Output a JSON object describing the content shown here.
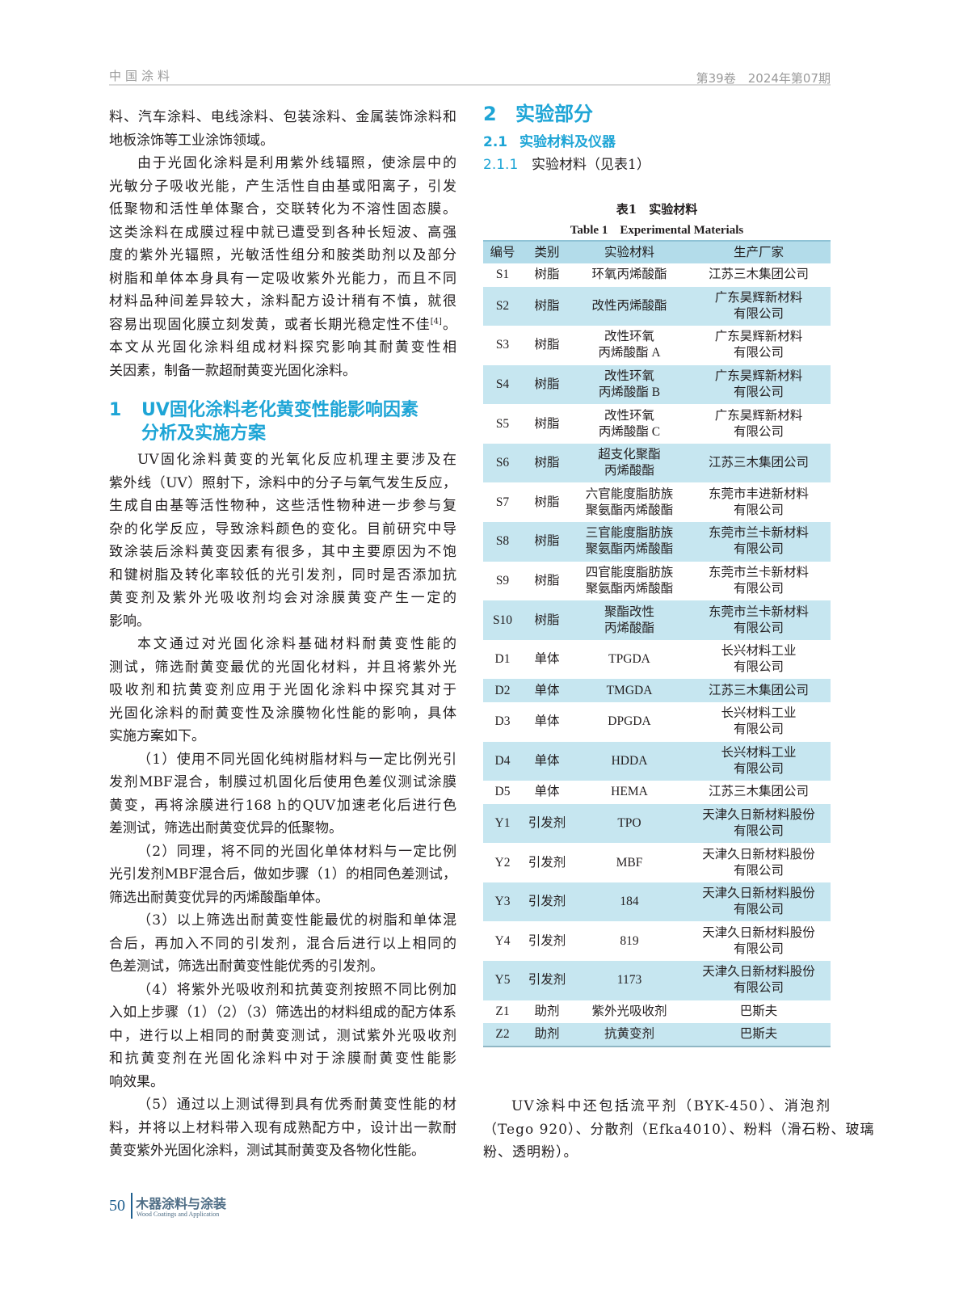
{
  "header": {
    "journal": "中国涂料",
    "issue": "第39卷　2024年第07期"
  },
  "left": {
    "blocks": [
      {
        "type": "p",
        "indent": false,
        "lines": [
          "料、汽车涂料、电线涂料、包装涂料、金属装饰涂料和",
          "地板涂饰等工业涂饰领域。"
        ]
      },
      {
        "type": "p",
        "indent": true,
        "lines": [
          "由于光固化涂料是利用紫外线辐照，使涂层中的",
          "光敏分子吸收光能，产生活性自由基或阳离子，引发",
          "低聚物和活性单体聚合，交联转化为不溶性固态膜。",
          "这类涂料在成膜过程中就已遭受到各种长短波、高强",
          "度的紫外光辐照，光敏活性组分和胺类助剂以及部分",
          "树脂和单体本身具有一定吸收紫外光能力，而且不同",
          "材料品种间差异较大，涂料配方设计稍有不慎，就很",
          [
            {
              "t": "容易出现固化膜立刻发黄，或者长期光稳定性不佳"
            },
            {
              "t": "[4]",
              "sup": true
            },
            {
              "t": "。"
            }
          ],
          "本文从光固化涂料组成材料探究影响其耐黄变性相",
          "关因素，制备一款超耐黄变光固化涂料。"
        ]
      },
      {
        "type": "h",
        "num": "1",
        "lines": [
          "UV固化涂料老化黄变性能影响因素",
          "分析及实施方案"
        ]
      },
      {
        "type": "p",
        "indent": true,
        "lines": [
          "UV固化涂料黄变的光氧化反应机理主要涉及在",
          "紫外线（UV）照射下，涂料中的分子与氧气发生反应，",
          "生成自由基等活性物种，这些活性物种进一步参与复",
          "杂的化学反应，导致涂料颜色的变化。目前研究中导",
          "致涂装后涂料黄变因素有很多，其中主要原因为不饱",
          "和键树脂及转化率较低的光引发剂，同时是否添加抗",
          "黄变剂及紫外光吸收剂均会对涂膜黄变产生一定的",
          "影响。"
        ]
      },
      {
        "type": "p",
        "indent": true,
        "lines": [
          "本文通过对光固化涂料基础材料耐黄变性能的",
          "测试，筛选耐黄变最优的光固化材料，并且将紫外光",
          "吸收剂和抗黄变剂应用于光固化涂料中探究其对于",
          "光固化涂料的耐黄变性及涂膜物化性能的影响，具体",
          "实施方案如下。"
        ]
      },
      {
        "type": "p",
        "indent": true,
        "lines": [
          "（1）使用不同光固化纯树脂材料与一定比例光引",
          "发剂MBF混合，制膜过机固化后使用色差仪测试涂膜",
          "黄变，再将涂膜进行168 h的QUV加速老化后进行色",
          "差测试，筛选出耐黄变优异的低聚物。"
        ]
      },
      {
        "type": "p",
        "indent": true,
        "lines": [
          "（2）同理，将不同的光固化单体材料与一定比例",
          "光引发剂MBF混合后，做如步骤（1）的相同色差测试，",
          "筛选出耐黄变优异的丙烯酸酯单体。"
        ]
      },
      {
        "type": "p",
        "indent": true,
        "lines": [
          "（3）以上筛选出耐黄变性能最优的树脂和单体混",
          "合后，再加入不同的引发剂，混合后进行以上相同的",
          "色差测试，筛选出耐黄变性能优秀的引发剂。"
        ]
      },
      {
        "type": "p",
        "indent": true,
        "lines": [
          "（4）将紫外光吸收剂和抗黄变剂按照不同比例加",
          "入如上步骤（1）（2）（3）筛选出的材料组成的配方体系",
          "中，进行以上相同的耐黄变测试，测试紫外光吸收剂",
          "和抗黄变剂在光固化涂料中对于涂膜耐黄变性能影",
          "响效果。"
        ]
      },
      {
        "type": "p",
        "indent": true,
        "lines": [
          "（5）通过以上测试得到具有优秀耐黄变性能的材",
          "料，并将以上材料带入现有成熟配方中，设计出一款耐",
          "黄变紫外光固化涂料，测试其耐黄变及各物化性能。"
        ]
      }
    ]
  },
  "right": {
    "section2": {
      "num": "2",
      "text": "实验部分"
    },
    "section2_1": {
      "num": "2.1",
      "text": "实验材料及仪器"
    },
    "section2_1_1": {
      "num": "2.1.1",
      "text": "实验材料（见表1）"
    },
    "table": {
      "caption_cn": "表1　实验材料",
      "caption_en": "Table 1　Experimental Materials",
      "columns": [
        "编号",
        "类别",
        "实验材料",
        "生产厂家"
      ],
      "rows": [
        {
          "id": "S1",
          "category": "树脂",
          "material": [
            "环氧丙烯酸酯"
          ],
          "manufacturer": [
            "江苏三木集团公司"
          ]
        },
        {
          "id": "S2",
          "category": "树脂",
          "material": [
            "改性丙烯酸酯"
          ],
          "manufacturer": [
            "广东昊辉新材料",
            "有限公司"
          ]
        },
        {
          "id": "S3",
          "category": "树脂",
          "material": [
            "改性环氧",
            "丙烯酸酯 A"
          ],
          "manufacturer": [
            "广东昊辉新材料",
            "有限公司"
          ]
        },
        {
          "id": "S4",
          "category": "树脂",
          "material": [
            "改性环氧",
            "丙烯酸酯 B"
          ],
          "manufacturer": [
            "广东昊辉新材料",
            "有限公司"
          ]
        },
        {
          "id": "S5",
          "category": "树脂",
          "material": [
            "改性环氧",
            "丙烯酸酯 C"
          ],
          "manufacturer": [
            "广东昊辉新材料",
            "有限公司"
          ]
        },
        {
          "id": "S6",
          "category": "树脂",
          "material": [
            "超支化聚酯",
            "丙烯酸酯"
          ],
          "manufacturer": [
            "江苏三木集团公司"
          ]
        },
        {
          "id": "S7",
          "category": "树脂",
          "material": [
            "六官能度脂肪族",
            "聚氨酯丙烯酸酯"
          ],
          "manufacturer": [
            "东莞市丰进新材料",
            "有限公司"
          ]
        },
        {
          "id": "S8",
          "category": "树脂",
          "material": [
            "三官能度脂肪族",
            "聚氨酯丙烯酸酯"
          ],
          "manufacturer": [
            "东莞市兰卡新材料",
            "有限公司"
          ]
        },
        {
          "id": "S9",
          "category": "树脂",
          "material": [
            "四官能度脂肪族",
            "聚氨酯丙烯酸酯"
          ],
          "manufacturer": [
            "东莞市兰卡新材料",
            "有限公司"
          ]
        },
        {
          "id": "S10",
          "category": "树脂",
          "material": [
            "聚酯改性",
            "丙烯酸酯"
          ],
          "manufacturer": [
            "东莞市兰卡新材料",
            "有限公司"
          ]
        },
        {
          "id": "D1",
          "category": "单体",
          "material": [
            "TPGDA"
          ],
          "manufacturer": [
            "长兴材料工业",
            "有限公司"
          ]
        },
        {
          "id": "D2",
          "category": "单体",
          "material": [
            "TMGDA"
          ],
          "manufacturer": [
            "江苏三木集团公司"
          ]
        },
        {
          "id": "D3",
          "category": "单体",
          "material": [
            "DPGDA"
          ],
          "manufacturer": [
            "长兴材料工业",
            "有限公司"
          ]
        },
        {
          "id": "D4",
          "category": "单体",
          "material": [
            "HDDA"
          ],
          "manufacturer": [
            "长兴材料工业",
            "有限公司"
          ]
        },
        {
          "id": "D5",
          "category": "单体",
          "material": [
            "HEMA"
          ],
          "manufacturer": [
            "江苏三木集团公司"
          ]
        },
        {
          "id": "Y1",
          "category": "引发剂",
          "material": [
            "TPO"
          ],
          "manufacturer": [
            "天津久日新材料股份",
            "有限公司"
          ]
        },
        {
          "id": "Y2",
          "category": "引发剂",
          "material": [
            "MBF"
          ],
          "manufacturer": [
            "天津久日新材料股份",
            "有限公司"
          ]
        },
        {
          "id": "Y3",
          "category": "引发剂",
          "material": [
            "184"
          ],
          "manufacturer": [
            "天津久日新材料股份",
            "有限公司"
          ]
        },
        {
          "id": "Y4",
          "category": "引发剂",
          "material": [
            "819"
          ],
          "manufacturer": [
            "天津久日新材料股份",
            "有限公司"
          ]
        },
        {
          "id": "Y5",
          "category": "引发剂",
          "material": [
            "1173"
          ],
          "manufacturer": [
            "天津久日新材料股份",
            "有限公司"
          ]
        },
        {
          "id": "Z1",
          "category": "助剂",
          "material": [
            "紫外光吸收剂"
          ],
          "manufacturer": [
            "巴斯夫"
          ]
        },
        {
          "id": "Z2",
          "category": "助剂",
          "material": [
            "抗黄变剂"
          ],
          "manufacturer": [
            "巴斯夫"
          ]
        }
      ]
    },
    "closing": {
      "lines": [
        "UV涂料中还包括流平剂（BYK-450）、消泡剂",
        "（Tego 920）、分散剂（Efka4010）、粉料（滑石粉、玻璃",
        "粉、透明粉）。"
      ]
    }
  },
  "footer": {
    "page": "50",
    "journal_cn": "木器涂料与涂装",
    "journal_en": "Wood Coatings and Application"
  },
  "colors": {
    "heading": "#1ea5d6",
    "table_header": "#b3dcea",
    "table_stripe": "#c6e6f0",
    "footer": "#1f5f8f"
  }
}
